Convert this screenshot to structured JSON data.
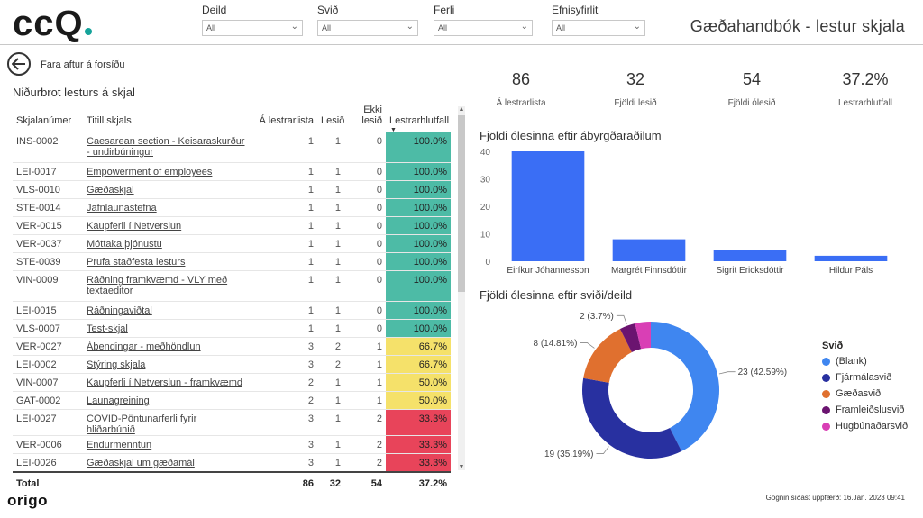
{
  "brand": {
    "logo": "cc",
    "logo_q": "Q",
    "footer_logo": "origo"
  },
  "header": {
    "title": "Gæðahandbók - lestur skjala",
    "filters": [
      {
        "label": "Deild",
        "value": "All"
      },
      {
        "label": "Svið",
        "value": "All"
      },
      {
        "label": "Ferli",
        "value": "All"
      },
      {
        "label": "Efnisyfirlit",
        "value": "All"
      }
    ]
  },
  "back": {
    "label": "Fara aftur á forsíðu"
  },
  "table": {
    "title": "Niðurbrot lesturs á skjal",
    "columns": [
      "Skjalanúmer",
      "Titill skjals",
      "Á lestrarlista",
      "Lesið",
      "Ekki lesið",
      "Lestrarhlutfall"
    ],
    "rows": [
      [
        "INS-0002",
        "Caesarean section - Keisaraskurður - undirbúningur",
        "1",
        "1",
        "0",
        "100.0%"
      ],
      [
        "LEI-0017",
        "Empowerment of employees",
        "1",
        "1",
        "0",
        "100.0%"
      ],
      [
        "VLS-0010",
        "Gæðaskjal",
        "1",
        "1",
        "0",
        "100.0%"
      ],
      [
        "STE-0014",
        "Jafnlaunastefna",
        "1",
        "1",
        "0",
        "100.0%"
      ],
      [
        "VER-0015",
        "Kaupferli í Netverslun",
        "1",
        "1",
        "0",
        "100.0%"
      ],
      [
        "VER-0037",
        "Móttaka þjónustu",
        "1",
        "1",
        "0",
        "100.0%"
      ],
      [
        "STE-0039",
        "Prufa staðfesta lesturs",
        "1",
        "1",
        "0",
        "100.0%"
      ],
      [
        "VIN-0009",
        "Ráðning framkvæmd - VLY með textaeditor",
        "1",
        "1",
        "0",
        "100.0%"
      ],
      [
        "LEI-0015",
        "Ráðningaviðtal",
        "1",
        "1",
        "0",
        "100.0%"
      ],
      [
        "VLS-0007",
        "Test-skjal",
        "1",
        "1",
        "0",
        "100.0%"
      ],
      [
        "VER-0027",
        "Ábendingar - meðhöndlun",
        "3",
        "2",
        "1",
        "66.7%"
      ],
      [
        "LEI-0002",
        "Stýring skjala",
        "3",
        "2",
        "1",
        "66.7%"
      ],
      [
        "VIN-0007",
        "Kaupferli í Netverslun - framkvæmd",
        "2",
        "1",
        "1",
        "50.0%"
      ],
      [
        "GAT-0002",
        "Launagreining",
        "2",
        "1",
        "1",
        "50.0%"
      ],
      [
        "LEI-0027",
        "COVID-Pöntunarferli fyrir hliðarbúnið",
        "3",
        "1",
        "2",
        "33.3%"
      ],
      [
        "VER-0006",
        "Endurmenntun",
        "3",
        "1",
        "2",
        "33.3%"
      ],
      [
        "LEI-0026",
        "Gæðaskjal um gæðamál",
        "3",
        "1",
        "2",
        "33.3%"
      ]
    ],
    "total": [
      "Total",
      "",
      "86",
      "32",
      "54",
      "37.2%"
    ]
  },
  "kpis": [
    {
      "value": "86",
      "label": "Á lestrarlista"
    },
    {
      "value": "32",
      "label": "Fjöldi lesið"
    },
    {
      "value": "54",
      "label": "Fjöldi ólesið"
    },
    {
      "value": "37.2%",
      "label": "Lestrarhlutfall"
    }
  ],
  "colors": {
    "green": "#4dbba6",
    "yellow": "#f5e16a",
    "red": "#e8445a",
    "bar": "#3a6ef5"
  },
  "chart_data": [
    {
      "type": "bar",
      "title": "Fjöldi ólesinna eftir ábyrgðaraðilum",
      "categories": [
        "Eiríkur Jóhannesson",
        "Margrét Finnsdóttir",
        "Sigrit Ericksdóttir",
        "Hildur Páls"
      ],
      "values": [
        40,
        8,
        4,
        2
      ],
      "ylim": [
        0,
        40
      ],
      "yticks": [
        "0",
        "10",
        "20",
        "30",
        "40"
      ],
      "color": "#3a6ef5"
    },
    {
      "type": "pie",
      "title": "Fjöldi ólesinna eftir sviði/deild",
      "legend_title": "Svið",
      "slices": [
        {
          "name": "(Blank)",
          "value": 23,
          "label": "23 (42.59%)",
          "color": "#3f86f0"
        },
        {
          "name": "Fjármálasvið",
          "value": 19,
          "label": "19 (35.19%)",
          "color": "#2830a0"
        },
        {
          "name": "Gæðasvið",
          "value": 8,
          "label": "8 (14.81%)",
          "color": "#e0702f"
        },
        {
          "name": "Framleiðslusvið",
          "value": 2,
          "label": "2 (3.7%)",
          "color": "#6b1470"
        },
        {
          "name": "Hugbúnaðarsvið",
          "value": 2,
          "label": "",
          "color": "#d93fb5"
        }
      ]
    }
  ],
  "footer": {
    "updated": "Gögnin síðast uppfærð: 16.Jan. 2023 09:41"
  }
}
